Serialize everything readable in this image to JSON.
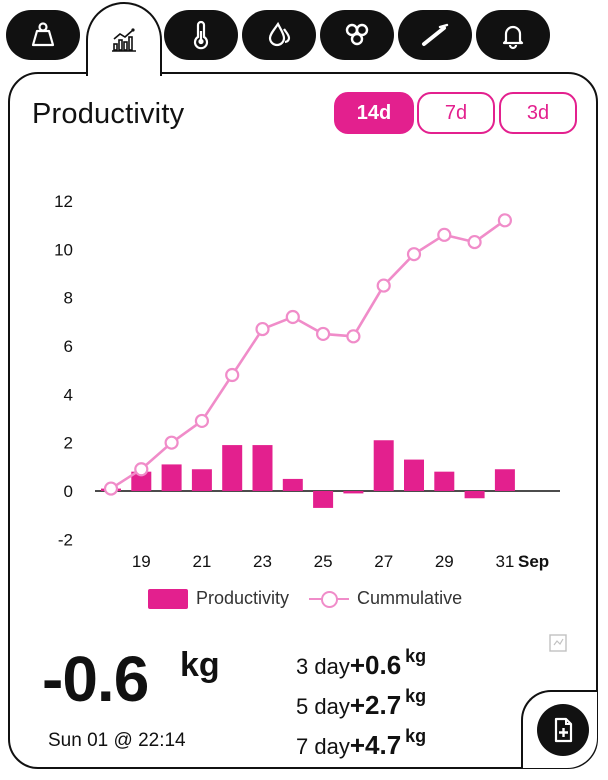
{
  "tabs": [
    {
      "icon": "weight-icon",
      "active": false
    },
    {
      "icon": "chart-icon",
      "active": true
    },
    {
      "icon": "thermometer-icon",
      "active": false
    },
    {
      "icon": "drop-icon",
      "active": false
    },
    {
      "icon": "hexagon-cluster-icon",
      "active": false
    },
    {
      "icon": "dipstick-icon",
      "active": false
    },
    {
      "icon": "bell-icon",
      "active": false
    }
  ],
  "header": {
    "title": "Productivity"
  },
  "ranges": [
    {
      "label": "14d",
      "selected": true
    },
    {
      "label": "7d",
      "selected": false
    },
    {
      "label": "3d",
      "selected": false
    }
  ],
  "chart_data": {
    "type": "bar",
    "x": [
      18,
      19,
      20,
      21,
      22,
      23,
      24,
      25,
      26,
      27,
      28,
      29,
      30,
      31
    ],
    "x_tick_labels": [
      "19",
      "21",
      "23",
      "25",
      "27",
      "29",
      "31"
    ],
    "x_unit_label": "Sep",
    "series": [
      {
        "name": "Productivity",
        "type": "bar",
        "color": "#e3208e",
        "values": [
          0.1,
          0.8,
          1.1,
          0.9,
          1.9,
          1.9,
          0.5,
          -0.7,
          -0.1,
          2.1,
          1.3,
          0.8,
          -0.3,
          0.9
        ]
      },
      {
        "name": "Cummulative",
        "type": "line",
        "color": "#f08cc9",
        "values": [
          0.1,
          0.9,
          2.0,
          2.9,
          4.8,
          6.7,
          7.2,
          6.5,
          6.4,
          8.5,
          9.8,
          10.6,
          10.3,
          11.2
        ]
      }
    ],
    "ylim": [
      -2,
      12
    ],
    "y_ticks": [
      -2,
      0,
      2,
      4,
      6,
      8,
      10,
      12
    ],
    "grid": false,
    "legend": "bottom"
  },
  "summary": {
    "value": "-0.6",
    "unit": "kg",
    "timestamp": "Sun 01 @ 22:14",
    "stats": [
      {
        "label": "3 day",
        "value": "+0.6",
        "unit": "kg"
      },
      {
        "label": "5 day",
        "value": "+2.7",
        "unit": "kg"
      },
      {
        "label": "7 day",
        "value": "+4.7",
        "unit": "kg"
      }
    ]
  },
  "colors": {
    "accent": "#e3208e",
    "line": "#f08cc9",
    "ink": "#111111"
  }
}
